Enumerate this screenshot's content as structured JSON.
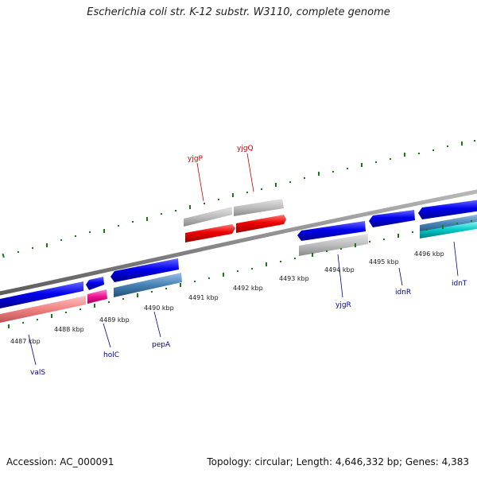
{
  "title": "Escherichia coli str. K-12 substr. W3110, complete genome",
  "footer": {
    "accession": "Accession: AC_000091",
    "summary": "Topology: circular; Length: 4,646,332 bp; Genes: 4,383"
  },
  "ticks": [
    {
      "id": "4487",
      "label": "4487 kbp"
    },
    {
      "id": "4488",
      "label": "4488 kbp"
    },
    {
      "id": "4489",
      "label": "4489 kbp"
    },
    {
      "id": "4490",
      "label": "4490 kbp"
    },
    {
      "id": "4491",
      "label": "4491 kbp"
    },
    {
      "id": "4492",
      "label": "4492 kbp"
    },
    {
      "id": "4493",
      "label": "4493 kbp"
    },
    {
      "id": "4494",
      "label": "4494 kbp"
    },
    {
      "id": "4495",
      "label": "4495 kbp"
    },
    {
      "id": "4496",
      "label": "4496 kbp"
    }
  ],
  "genes": {
    "yjgP": "yjgP",
    "yjgQ": "yjgQ",
    "valS": "valS",
    "holC": "holC",
    "pepA": "pepA",
    "yjgR": "yjgR",
    "idnR": "idnR",
    "idnT": "idnT"
  },
  "colors": {
    "forward_label": "#cc0000",
    "reverse_label": "#000099",
    "tick_mark": "#1a7a1a",
    "backbone": "#888888"
  }
}
